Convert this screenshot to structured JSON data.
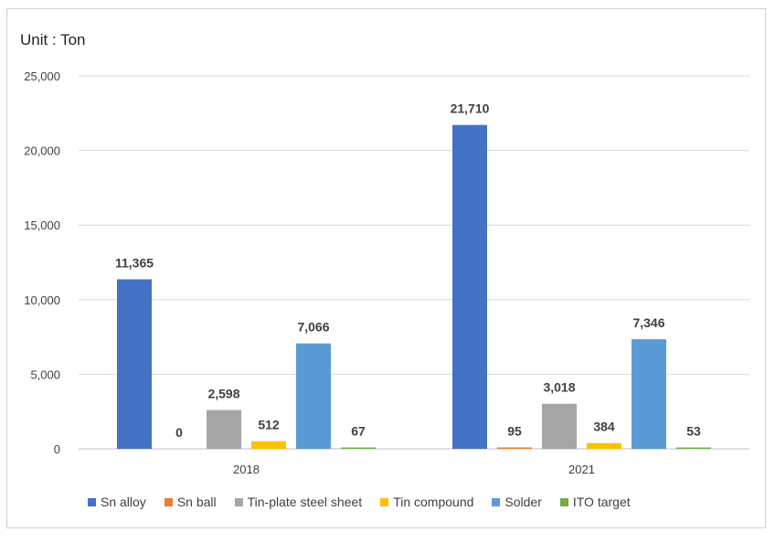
{
  "unit_label": "Unit : Ton",
  "chart_data": {
    "type": "bar",
    "categories": [
      "2018",
      "2021"
    ],
    "series": [
      {
        "name": "Sn alloy",
        "color": "#4472C4",
        "values": [
          11365,
          21710
        ],
        "labels": [
          "11,365",
          "21,710"
        ]
      },
      {
        "name": "Sn ball",
        "color": "#ED7D31",
        "values": [
          0,
          95
        ],
        "labels": [
          "0",
          "95"
        ]
      },
      {
        "name": "Tin-plate steel sheet",
        "color": "#A5A5A5",
        "values": [
          2598,
          3018
        ],
        "labels": [
          "2,598",
          "3,018"
        ]
      },
      {
        "name": "Tin compound",
        "color": "#FFC000",
        "values": [
          512,
          384
        ],
        "labels": [
          "512",
          "384"
        ]
      },
      {
        "name": "Solder",
        "color": "#5B9BD5",
        "values": [
          7066,
          7346
        ],
        "labels": [
          "7,066",
          "7,346"
        ]
      },
      {
        "name": "ITO target",
        "color": "#70AD47",
        "values": [
          67,
          53
        ],
        "labels": [
          "67",
          "53"
        ]
      }
    ],
    "ylim": [
      0,
      25000
    ],
    "yticks": [
      {
        "value": 0,
        "label": "0"
      },
      {
        "value": 5000,
        "label": "5,000"
      },
      {
        "value": 10000,
        "label": "10,000"
      },
      {
        "value": 15000,
        "label": "15,000"
      },
      {
        "value": 20000,
        "label": "20,000"
      },
      {
        "value": 25000,
        "label": "25,000"
      }
    ],
    "grid": true,
    "legend": "bottom"
  }
}
